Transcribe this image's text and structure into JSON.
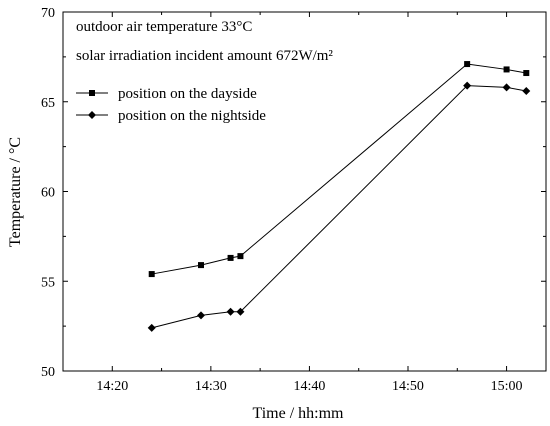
{
  "chart_data": {
    "type": "line",
    "xlabel": "Time / hh:mm",
    "ylabel": "Temperature / °C",
    "xlim": [
      "14:15",
      "15:04"
    ],
    "ylim": [
      50,
      70
    ],
    "xticks": [
      "14:20",
      "14:30",
      "14:40",
      "14:50",
      "15:00"
    ],
    "yticks": [
      50,
      55,
      60,
      65,
      70
    ],
    "grid": false,
    "legend_position": "top-left",
    "annotations": {
      "line1": "outdoor air temperature 33°C",
      "line2": "solar irradiation incident amount 672W/m²"
    },
    "series": [
      {
        "name": "position on the dayside",
        "marker": "square",
        "x": [
          "14:24",
          "14:29",
          "14:32",
          "14:33",
          "14:56",
          "15:00",
          "15:02"
        ],
        "values": [
          55.4,
          55.9,
          56.3,
          56.4,
          67.1,
          66.8,
          66.6
        ]
      },
      {
        "name": "position on the nightside",
        "marker": "diamond",
        "x": [
          "14:24",
          "14:29",
          "14:32",
          "14:33",
          "14:56",
          "15:00",
          "15:02"
        ],
        "values": [
          52.4,
          53.1,
          53.3,
          53.3,
          65.9,
          65.8,
          65.6
        ]
      }
    ]
  }
}
